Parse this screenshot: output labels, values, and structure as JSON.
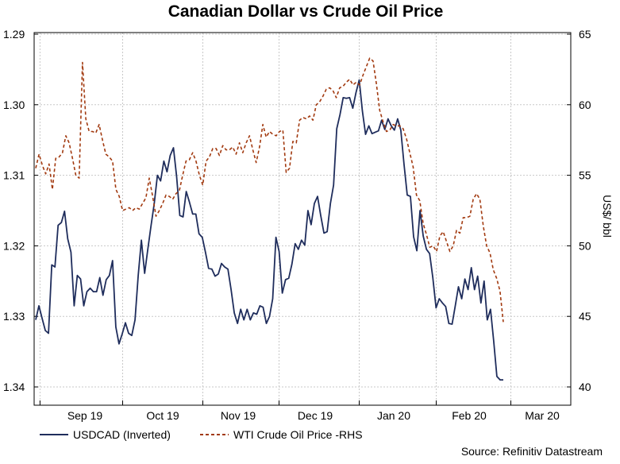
{
  "chart_data": {
    "type": "line",
    "title": "Canadian Dollar vs Crude Oil Price",
    "source": "Source: Refinitiv Datastream",
    "x_ticks": [
      "Sep 19",
      "Oct 19",
      "Nov 19",
      "Dec 19",
      "Jan 20",
      "Feb 20",
      "Mar 20"
    ],
    "y_left": {
      "ticks": [
        "1.29",
        "1.30",
        "1.31",
        "1.32",
        "1.33",
        "1.34"
      ],
      "ylim": [
        1.29,
        1.34
      ],
      "inverted": true,
      "label": ""
    },
    "y_right": {
      "ticks": [
        "65",
        "60",
        "55",
        "50",
        "45",
        "40"
      ],
      "ylim": [
        40,
        65
      ],
      "label": "US$/ bbl"
    },
    "series": [
      {
        "name": "USDCAD (Inverted)",
        "axis": "left",
        "color": "#1f2d5c",
        "style": "solid",
        "values": [
          1.3305,
          1.3285,
          1.3303,
          1.332,
          1.3324,
          1.3227,
          1.323,
          1.3171,
          1.3167,
          1.3151,
          1.319,
          1.3209,
          1.3285,
          1.3242,
          1.3247,
          1.3285,
          1.3265,
          1.326,
          1.3265,
          1.3265,
          1.3245,
          1.327,
          1.3248,
          1.3242,
          1.3221,
          1.3315,
          1.3339,
          1.3325,
          1.3309,
          1.3324,
          1.3327,
          1.3305,
          1.3242,
          1.3192,
          1.3239,
          1.3205,
          1.3172,
          1.314,
          1.31,
          1.3108,
          1.308,
          1.3095,
          1.3072,
          1.3061,
          1.3102,
          1.3157,
          1.3159,
          1.3123,
          1.3138,
          1.3155,
          1.3155,
          1.3183,
          1.3188,
          1.3209,
          1.3232,
          1.3233,
          1.3243,
          1.324,
          1.3225,
          1.323,
          1.3233,
          1.3262,
          1.3295,
          1.331,
          1.329,
          1.3305,
          1.329,
          1.3305,
          1.3295,
          1.3297,
          1.3285,
          1.3287,
          1.331,
          1.33,
          1.3275,
          1.3188,
          1.3208,
          1.3267,
          1.3248,
          1.3246,
          1.3226,
          1.3197,
          1.3205,
          1.3192,
          1.3199,
          1.315,
          1.317,
          1.314,
          1.313,
          1.3157,
          1.3182,
          1.318,
          1.314,
          1.3114,
          1.3034,
          1.3014,
          1.299,
          1.2991,
          1.299,
          1.3005,
          1.2983,
          1.2965,
          1.3009,
          1.3042,
          1.303,
          1.3041,
          1.3039,
          1.3037,
          1.3022,
          1.3035,
          1.302,
          1.303,
          1.3036,
          1.302,
          1.3036,
          1.3084,
          1.3128,
          1.313,
          1.3187,
          1.3207,
          1.315,
          1.3186,
          1.3205,
          1.3211,
          1.3245,
          1.3288,
          1.3275,
          1.3281,
          1.3286,
          1.331,
          1.3311,
          1.3285,
          1.3258,
          1.3275,
          1.3247,
          1.3262,
          1.3231,
          1.3262,
          1.3243,
          1.3281,
          1.325,
          1.3305,
          1.329,
          1.3335,
          1.3385,
          1.339,
          1.339
        ]
      },
      {
        "name": "WTI Crude Oil Price -RHS",
        "axis": "right",
        "color": "#a23a10",
        "style": "dashed",
        "values": [
          55.5,
          56.5,
          55.7,
          55.1,
          55.8,
          54.0,
          56.2,
          56.3,
          56.6,
          57.8,
          57.3,
          56.2,
          55.0,
          54.8,
          63.0,
          59.0,
          58.1,
          58.1,
          58.0,
          58.6,
          57.5,
          56.5,
          56.3,
          56.0,
          54.0,
          53.5,
          52.5,
          52.6,
          52.7,
          52.5,
          52.7,
          52.6,
          53.0,
          53.4,
          54.8,
          53.5,
          52.1,
          52.5,
          53.0,
          53.6,
          53.5,
          53.3,
          53.7,
          53.9,
          55.0,
          56.0,
          56.1,
          56.6,
          56.0,
          55.0,
          54.3,
          56.0,
          56.3,
          56.9,
          56.9,
          56.4,
          57.1,
          56.8,
          56.8,
          57.0,
          56.5,
          57.3,
          56.6,
          57.3,
          57.8,
          56.8,
          55.9,
          57.0,
          58.6,
          57.7,
          58.1,
          57.9,
          57.8,
          58.1,
          58.2,
          55.2,
          55.5,
          57.4,
          57.3,
          58.9,
          59.1,
          59.0,
          59.2,
          58.9,
          60.0,
          60.2,
          60.6,
          61.1,
          61.2,
          61.0,
          60.5,
          61.2,
          61.3,
          61.6,
          61.8,
          61.4,
          61.6,
          61.4,
          62.1,
          62.7,
          63.3,
          63.1,
          61.5,
          59.6,
          58.8,
          58.1,
          58.2,
          58.6,
          58.5,
          58.5,
          58.3,
          57.6,
          56.6,
          55.6,
          53.6,
          53.2,
          51.6,
          50.8,
          49.9,
          50.0,
          49.6,
          50.7,
          51.0,
          50.3,
          49.6,
          50.0,
          51.1,
          50.9,
          52.0,
          52.0,
          52.1,
          53.3,
          53.7,
          53.3,
          51.4,
          50.0,
          49.5,
          48.3,
          47.7,
          46.8,
          44.6
        ]
      }
    ]
  }
}
